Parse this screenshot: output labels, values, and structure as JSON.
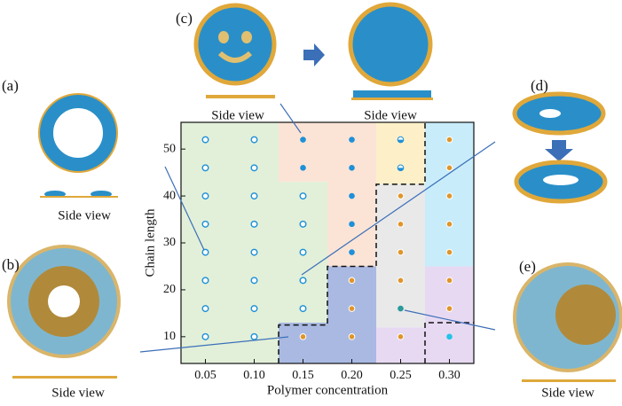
{
  "chart_data": {
    "type": "scatter",
    "xlabel": "Polymer concentration",
    "ylabel": "Chain length",
    "xlim": [
      0.025,
      0.325
    ],
    "ylim": [
      4.3,
      55.7
    ],
    "xticks": [
      0.05,
      {
        "value": 0.1,
        "label": "0.10"
      },
      0.15,
      {
        "value": 0.2,
        "label": "0.20"
      },
      0.25,
      {
        "value": 0.3,
        "label": "0.30"
      }
    ],
    "yticks": [
      10,
      20,
      30,
      40,
      50
    ],
    "regions": [
      {
        "color": "#e2f0d9",
        "x": [
          0.025,
          0.125
        ],
        "y": [
          4.3,
          55.7
        ]
      },
      {
        "color": "#e2f0d9",
        "x": [
          0.125,
          0.175
        ],
        "y": [
          13,
          43
        ]
      },
      {
        "color": "#fbe4d6",
        "x": [
          0.125,
          0.175
        ],
        "y": [
          43,
          55.7
        ]
      },
      {
        "color": "#fbe4d6",
        "x": [
          0.175,
          0.225
        ],
        "y": [
          25,
          55.7
        ]
      },
      {
        "color": "#a9b9e2",
        "x": [
          0.125,
          0.175
        ],
        "y": [
          4.3,
          13
        ]
      },
      {
        "color": "#a9b9e2",
        "x": [
          0.175,
          0.225
        ],
        "y": [
          4.3,
          25
        ]
      },
      {
        "color": "#fdf0c9",
        "x": [
          0.225,
          0.275
        ],
        "y": [
          42.5,
          55.7
        ]
      },
      {
        "color": "#e9e9e9",
        "x": [
          0.225,
          0.275
        ],
        "y": [
          12,
          42.5
        ]
      },
      {
        "color": "#e7d9f2",
        "x": [
          0.225,
          0.275
        ],
        "y": [
          4.3,
          12
        ]
      },
      {
        "color": "#e7d9f2",
        "x": [
          0.275,
          0.325
        ],
        "y": [
          4.3,
          25
        ]
      },
      {
        "color": "#c8ecfa",
        "x": [
          0.275,
          0.325
        ],
        "y": [
          25,
          55.7
        ]
      }
    ],
    "boundaries": [
      {
        "x": [
          0.125,
          0.125,
          0.175,
          0.175,
          0.225,
          0.225,
          0.275,
          0.275
        ],
        "y": [
          4.3,
          12.5,
          12.5,
          25,
          25,
          42.5,
          42.5,
          55.7
        ]
      },
      {
        "x": [
          0.275,
          0.275,
          0.325
        ],
        "y": [
          4.3,
          13,
          13
        ]
      }
    ],
    "series": [
      {
        "color": "#1e90d8",
        "marker": "open",
        "x": [
          0.05,
          0.05,
          0.05,
          0.05,
          0.05,
          0.05,
          0.05,
          0.05,
          0.1,
          0.1,
          0.1,
          0.1,
          0.1,
          0.1,
          0.1,
          0.1,
          0.15,
          0.15,
          0.15,
          0.15,
          0.15
        ],
        "values": [
          10,
          16,
          22,
          28,
          34,
          40,
          46,
          52,
          10,
          16,
          22,
          28,
          34,
          40,
          46,
          52,
          16,
          22,
          28,
          34,
          40
        ]
      },
      {
        "color": "#1e90d8",
        "marker": "filled",
        "x": [
          0.15,
          0.15,
          0.2,
          0.2,
          0.2,
          0.2,
          0.2
        ],
        "values": [
          46,
          52,
          28,
          34,
          40,
          46,
          52
        ]
      },
      {
        "color": "#e0952a",
        "marker": "ring",
        "x": [
          0.15,
          0.2,
          0.2,
          0.2,
          0.25,
          0.25,
          0.25,
          0.25,
          0.25,
          0.3,
          0.3,
          0.3,
          0.3,
          0.3,
          0.3,
          0.3
        ],
        "values": [
          10,
          10,
          16,
          22,
          10,
          22,
          28,
          34,
          40,
          16,
          22,
          28,
          34,
          40,
          46,
          52
        ]
      },
      {
        "color": "#1e90d8",
        "marker": "half",
        "x": [
          0.25,
          0.25
        ],
        "values": [
          46,
          52
        ]
      },
      {
        "color": "#2a9a9a",
        "marker": "filled",
        "x": [
          0.25
        ],
        "values": [
          16
        ]
      },
      {
        "color": "#22c4e8",
        "marker": "filled",
        "x": [
          0.3
        ],
        "values": [
          10
        ]
      }
    ]
  },
  "panels": [
    {
      "label": "(a)",
      "caption": "Side view"
    },
    {
      "label": "(b)",
      "caption": "Side view"
    },
    {
      "label": "(c)",
      "caption": "Side view",
      "caption2": "Side view"
    },
    {
      "label": "(d)"
    },
    {
      "label": "(e)",
      "caption": "Side view"
    }
  ]
}
